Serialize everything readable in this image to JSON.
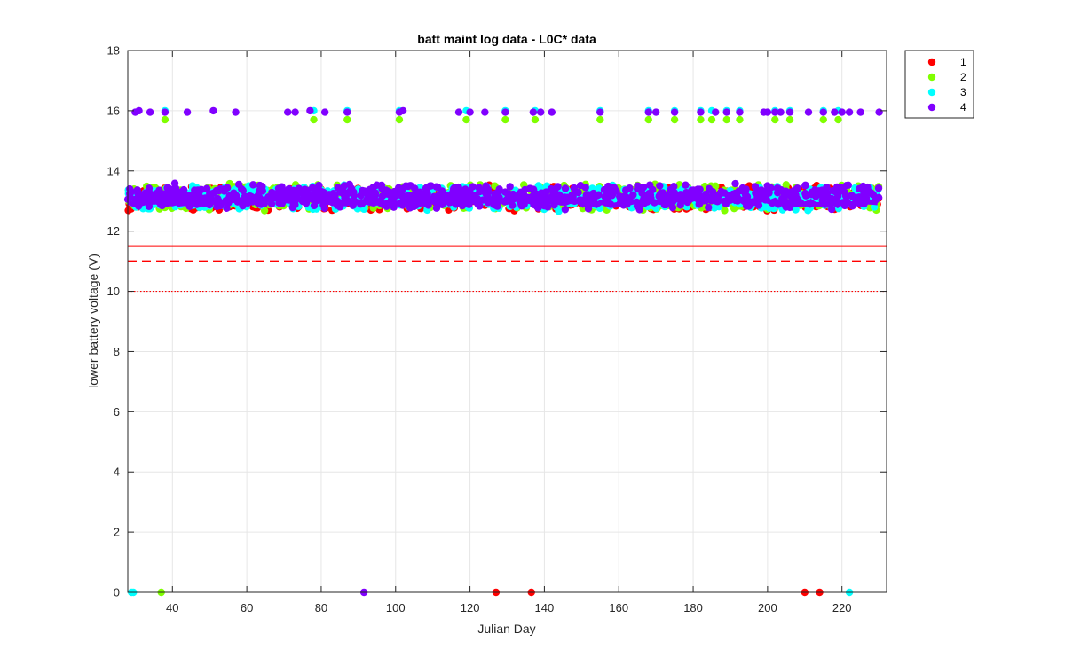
{
  "chart_data": {
    "type": "scatter",
    "title": "batt maint log data - L0C* data",
    "xlabel": "Julian Day",
    "ylabel": "lower battery voltage (V)",
    "xlim": [
      28,
      232
    ],
    "ylim": [
      0,
      18
    ],
    "xticks": [
      40,
      60,
      80,
      100,
      120,
      140,
      160,
      180,
      200,
      220
    ],
    "yticks": [
      0,
      2,
      4,
      6,
      8,
      10,
      12,
      14,
      16,
      18
    ],
    "grid": true,
    "legend": {
      "placement": "top-right, outside axes",
      "entries": [
        "1",
        "2",
        "3",
        "4"
      ]
    },
    "reference_lines": [
      {
        "y": 11.5,
        "color": "#ff0000",
        "style": "solid"
      },
      {
        "y": 11.0,
        "color": "#ff0000",
        "style": "dashed"
      },
      {
        "y": 10.0,
        "color": "#ff0000",
        "style": "dotted"
      }
    ],
    "series": [
      {
        "name": "1",
        "color": "#ff0000",
        "band": {
          "x_range": [
            28,
            230
          ],
          "y_range": [
            12.65,
            13.55
          ],
          "n_points": 700
        },
        "x": [
          127,
          136.5,
          210,
          214
        ],
        "y": [
          0,
          0,
          0,
          0
        ]
      },
      {
        "name": "2",
        "color": "#80ff00",
        "band": {
          "x_range": [
            28,
            230
          ],
          "y_range": [
            12.65,
            13.6
          ],
          "n_points": 700
        },
        "x": [
          37,
          38,
          78,
          87,
          101,
          119,
          129.5,
          137.5,
          155,
          168,
          175,
          182,
          185,
          189,
          192.5,
          202,
          206,
          215,
          219
        ],
        "y": [
          0,
          15.7,
          15.7,
          15.7,
          15.7,
          15.7,
          15.7,
          15.7,
          15.7,
          15.7,
          15.7,
          15.7,
          15.7,
          15.7,
          15.7,
          15.7,
          15.7,
          15.7,
          15.7
        ]
      },
      {
        "name": "3",
        "color": "#00ffff",
        "band": {
          "x_range": [
            28,
            230
          ],
          "y_range": [
            12.65,
            13.55
          ],
          "n_points": 700
        },
        "x": [
          29,
          29.5,
          222,
          38,
          78,
          87,
          101,
          119,
          129.5,
          137.5,
          155,
          168,
          175,
          182,
          185,
          189,
          192.5,
          202,
          206,
          215,
          219
        ],
        "y": [
          0,
          0,
          0,
          16,
          16,
          16,
          16,
          16,
          16,
          16,
          16,
          16,
          16,
          16,
          16,
          16,
          16,
          16,
          16,
          16,
          16
        ]
      },
      {
        "name": "4",
        "color": "#8000ff",
        "band": {
          "x_range": [
            28,
            230
          ],
          "y_range": [
            12.7,
            13.6
          ],
          "n_points": 800
        },
        "x": [
          91.5,
          30,
          31,
          34,
          38,
          44,
          51,
          57,
          71,
          73,
          77,
          81,
          87,
          101,
          102,
          117,
          120,
          124,
          129.5,
          137,
          139,
          142,
          155,
          168,
          170,
          175,
          182,
          186,
          189,
          192.5,
          199,
          200,
          202,
          203.5,
          206,
          211,
          215,
          218,
          220,
          222,
          225,
          230
        ],
        "y": [
          0,
          15.95,
          16,
          15.95,
          15.95,
          15.95,
          16,
          15.95,
          15.95,
          15.95,
          16,
          15.95,
          15.95,
          15.95,
          16,
          15.95,
          15.95,
          15.95,
          15.95,
          15.95,
          15.95,
          15.95,
          15.95,
          15.95,
          15.95,
          15.95,
          15.95,
          15.95,
          15.95,
          15.95,
          15.95,
          15.95,
          15.95,
          15.95,
          15.95,
          15.95,
          15.95,
          15.95,
          15.95,
          15.95,
          15.95,
          15.95
        ]
      }
    ]
  }
}
